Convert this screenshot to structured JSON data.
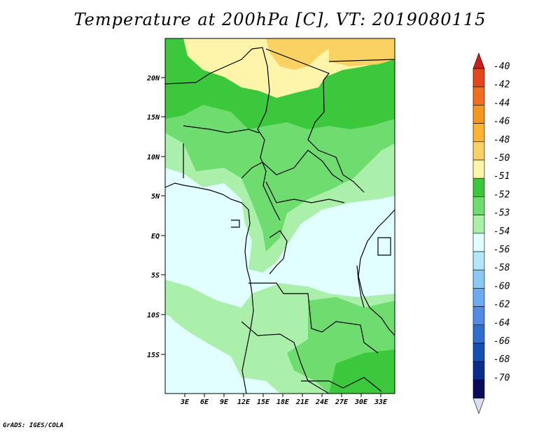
{
  "title": "Temperature at 200hPa [C], VT: 2019080115",
  "credit": "GrADS: IGES/COLA",
  "lat_ticks": [
    "20N",
    "15N",
    "10N",
    "5N",
    "EQ",
    "5S",
    "10S",
    "15S"
  ],
  "lon_ticks": [
    "3E",
    "6E",
    "9E",
    "12E",
    "15E",
    "18E",
    "21E",
    "24E",
    "27E",
    "30E",
    "33E"
  ],
  "colorbar": {
    "labels": [
      "-40",
      "-42",
      "-44",
      "-46",
      "-48",
      "-50",
      "-51",
      "-52",
      "-53",
      "-54",
      "-56",
      "-58",
      "-60",
      "-62",
      "-64",
      "-66",
      "-68",
      "-70"
    ],
    "colors": [
      "#cc1e1e",
      "#e6461e",
      "#f06e1e",
      "#f5961e",
      "#fab432",
      "#fad264",
      "#fff5aa",
      "#3cc83c",
      "#6edc6e",
      "#aaf0aa",
      "#e1ffff",
      "#b4e6fa",
      "#8cc8f5",
      "#6eaaf0",
      "#508ce6",
      "#326ed2",
      "#1450b4",
      "#0a2d8c",
      "#0a0a5a",
      "#dcdcf5"
    ]
  },
  "field_colors": {
    "c_50": "#fad264",
    "c_51": "#fff5aa",
    "c_52": "#3cc83c",
    "c_53": "#6edc6e",
    "c_54": "#aaf0aa",
    "c_56": "#e1ffff"
  }
}
